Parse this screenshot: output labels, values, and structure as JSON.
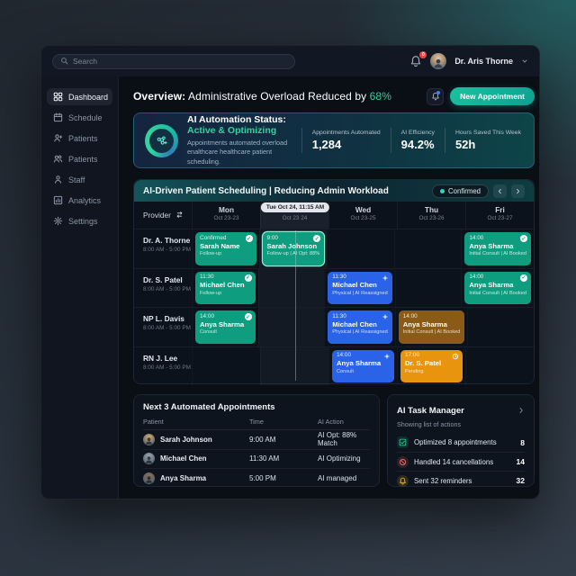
{
  "topbar": {
    "search_placeholder": "Search",
    "notification_count": "0",
    "user_name": "Dr. Aris Thorne"
  },
  "sidebar": {
    "items": [
      {
        "label": "Dashboard",
        "icon": "grid-icon",
        "active": true
      },
      {
        "label": "Schedule",
        "icon": "calendar-icon",
        "active": false
      },
      {
        "label": "Patients",
        "icon": "patient-add-icon",
        "active": false
      },
      {
        "label": "Patients",
        "icon": "patients-icon",
        "active": false
      },
      {
        "label": "Staff",
        "icon": "staff-icon",
        "active": false
      },
      {
        "label": "Analytics",
        "icon": "analytics-icon",
        "active": false
      },
      {
        "label": "Settings",
        "icon": "gear-icon",
        "active": false
      }
    ]
  },
  "header": {
    "title_bold": "Overview:",
    "title_rest": " Administrative Overload Reduced by ",
    "title_highlight": "68%",
    "new_appointment_label": "New Appointment"
  },
  "automation": {
    "title": "AI Automation Status: ",
    "status": "Active & Optimizing",
    "subtitle_line1": "Appointments automated overload",
    "subtitle_line2": "enalthcare healthcare patient scheduling.",
    "stats": [
      {
        "label": "Appointments Automated",
        "value": "1,284"
      },
      {
        "label": "AI Efficiency",
        "value": "94.2%"
      },
      {
        "label": "Hours Saved This Week",
        "value": "52h"
      }
    ]
  },
  "schedule": {
    "title": "AI-Driven Patient Scheduling | Reducing Admin Workload",
    "badge": "Confirmed",
    "provider_label": "Provider",
    "now_tooltip": "Tue Oct 24, 11:15 AM",
    "days": [
      {
        "name": "Mon",
        "range": "Oct 23-23",
        "active": false
      },
      {
        "name": "Tue",
        "range": "Oct 23 24",
        "active": true
      },
      {
        "name": "Wed",
        "range": "Oct 23-25",
        "active": false
      },
      {
        "name": "Thu",
        "range": "Oct 23-26",
        "active": false
      },
      {
        "name": "Fri",
        "range": "Oct 23-27",
        "active": false
      }
    ],
    "rows": [
      {
        "provider": "Dr. A. Thorne",
        "hours": "8:00 AM - 5:00 PM",
        "cards": [
          {
            "day": 0,
            "color": "green",
            "time": "Confirmed",
            "name": "Sarah Name",
            "detail": "Follow-up",
            "badge": "check",
            "highlight": false
          },
          {
            "day": 1,
            "color": "green",
            "time": "9:00",
            "name": "Sarah Johnson",
            "detail": "Follow-up | AI Opt: 88%",
            "badge": "check",
            "highlight": true
          },
          {
            "day": 4,
            "color": "green",
            "time": "14:00",
            "name": "Anya Sharma",
            "detail": "Initial Consult | AI Booked",
            "badge": "check",
            "highlight": false
          }
        ]
      },
      {
        "provider": "Dr. S. Patel",
        "hours": "8:00 AM - 5:00 PM",
        "cards": [
          {
            "day": 0,
            "color": "green",
            "time": "11:30",
            "name": "Michael Chen",
            "detail": "Follow-up",
            "badge": "check",
            "highlight": false
          },
          {
            "day": 2,
            "color": "blue",
            "time": "11:30",
            "name": "Michael Chen",
            "detail": "Physical | AI Reassigned",
            "badge": "sparkle",
            "highlight": false
          },
          {
            "day": 4,
            "color": "green",
            "time": "14:00",
            "name": "Anya Sharma",
            "detail": "Initial Consult | AI Booked",
            "badge": "check",
            "highlight": false
          }
        ]
      },
      {
        "provider": "NP L. Davis",
        "hours": "8:00 AM - 5:00 PM",
        "cards": [
          {
            "day": 0,
            "color": "green",
            "time": "14:00",
            "name": "Anya Sharma",
            "detail": "Consult",
            "badge": "check",
            "highlight": false
          },
          {
            "day": 2,
            "color": "blue",
            "time": "11:30",
            "name": "Michael Chen",
            "detail": "Physical | AI Reassigned",
            "badge": "sparkle",
            "highlight": false
          },
          {
            "day": 3,
            "color": "amber",
            "time": "14:00",
            "name": "Anya Sharma",
            "detail": "Initial Consult | AI Booked",
            "badge": "",
            "highlight": false
          }
        ]
      },
      {
        "provider": "RN J. Lee",
        "hours": "8:00 AM - 5:00 PM",
        "cards": [
          {
            "day": 2,
            "color": "blue",
            "time": "14:00",
            "name": "Anya Sharma",
            "detail": "Consult",
            "badge": "sparkle",
            "highlight": false
          },
          {
            "day": 3,
            "color": "orange",
            "time": "17:00",
            "name": "Dr. S. Patel",
            "detail": "Pending",
            "badge": "clock",
            "highlight": false
          }
        ]
      }
    ]
  },
  "next_appointments": {
    "title": "Next 3 Automated Appointments",
    "columns": [
      "Patient",
      "Time",
      "AI Action"
    ],
    "rows": [
      {
        "patient": "Sarah Johnson",
        "time": "9:00 AM",
        "action": "AI Opt: 88% Match",
        "avatar_color": "#d3ab72"
      },
      {
        "patient": "Michael Chen",
        "time": "11:30 AM",
        "action": "AI Optimizing",
        "avatar_color": "#9aa7b2"
      },
      {
        "patient": "Anya Sharma",
        "time": "5:00 PM",
        "action": "AI managed",
        "avatar_color": "#8a6d5a"
      }
    ]
  },
  "task_manager": {
    "title": "AI Task Manager",
    "subtitle": "Showing list of actions",
    "items": [
      {
        "icon": "check-square-icon",
        "label": "Optimized 8 appointments",
        "count": "8",
        "color": "green"
      },
      {
        "icon": "cancel-circle-icon",
        "label": "Handled 14 cancellations",
        "count": "14",
        "color": "red"
      },
      {
        "icon": "bell-icon",
        "label": "Sent 32 reminders",
        "count": "32",
        "color": "amber"
      }
    ]
  },
  "colors": {
    "accent_teal": "#14b8a6",
    "success_green": "#34d399",
    "card_green": "#0e9d7e",
    "card_blue": "#2b63e8",
    "card_amber": "#8a5a17",
    "card_orange": "#e8940e",
    "alert_red": "#ef4444"
  }
}
